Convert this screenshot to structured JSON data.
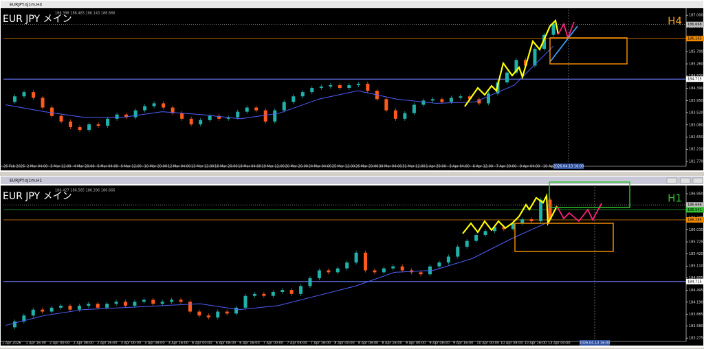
{
  "windows": [
    {
      "title": "EURJPY.oj1m,H4",
      "quote": "186.398 186.483 186.143 186.666",
      "label": "EUR JPY メイン",
      "timeframe": "H4",
      "timeframe_color": "#f0a020",
      "ylim": [
        181.7,
        187.2
      ],
      "yticks": [
        {
          "value": 187,
          "label": "187.000"
        },
        {
          "value": 186.57,
          "label": "186.570"
        },
        {
          "value": 186.13,
          "label": "186.130"
        },
        {
          "value": 185.7,
          "label": "185.700"
        },
        {
          "value": 185.26,
          "label": "185.260"
        },
        {
          "value": 184.83,
          "label": "184.830"
        },
        {
          "value": 184.39,
          "label": "184.390"
        },
        {
          "value": 183.95,
          "label": "183.950"
        },
        {
          "value": 183.52,
          "label": "183.520"
        },
        {
          "value": 183.08,
          "label": "183.080"
        },
        {
          "value": 182.65,
          "label": "182.650"
        },
        {
          "value": 182.21,
          "label": "182.210"
        },
        {
          "value": 181.77,
          "label": "181.770"
        }
      ],
      "price_tags": [
        {
          "value": 186.668,
          "label": "186.668",
          "color": "#c0c0c0"
        },
        {
          "value": 186.165,
          "label": "186.165",
          "color": "#f08a00"
        },
        {
          "value": 184.715,
          "label": "184.715",
          "color": "#ffffff"
        }
      ],
      "time_labels": [
        "26 Feb 2026",
        "2 Mar 04:00",
        "3 Mar 12:00",
        "4 Mar 20:00",
        "6 Mar 04:00",
        "9 Mar 12:00",
        "10 Mar 20:00",
        "12 Mar 04:00",
        "13 Mar 12:00",
        "16 Mar 20:00",
        "18 Mar 04:00",
        "19 Mar 12:00",
        "20 Mar 20:00",
        "24 Mar 04:00",
        "25 Mar 12:00",
        "26 Mar 20:00",
        "30 Mar 04:00",
        "31 Mar 12:00",
        "1 Apr 20:00",
        "3 Apr 04:00",
        "6 Apr 12:00",
        "7 Apr 20:00",
        "9 Apr 04:00",
        "10 Apr 12:00"
      ],
      "cursor_time": "2026.04.13 16:00",
      "closes": [
        183.9,
        184.1,
        184.25,
        184.05,
        183.7,
        183.4,
        183.2,
        183.0,
        182.9,
        183.1,
        183.05,
        183.3,
        183.45,
        183.35,
        183.6,
        183.75,
        183.85,
        183.7,
        183.5,
        183.3,
        183.1,
        183.25,
        183.4,
        183.3,
        183.35,
        183.55,
        183.7,
        183.6,
        183.2,
        183.6,
        183.9,
        184.1,
        184.25,
        184.4,
        184.45,
        184.5,
        184.4,
        184.5,
        184.55,
        184.3,
        184.0,
        183.6,
        183.3,
        183.5,
        183.8,
        183.95,
        184.0,
        183.9,
        184.05,
        184.1,
        184.0,
        183.85,
        184.2,
        184.6,
        184.95,
        185.4,
        185.2,
        185.8,
        186.3,
        186.7
      ],
      "ma": [
        183.8,
        183.55,
        183.35,
        183.35,
        183.55,
        183.45,
        183.3,
        183.5,
        184.0,
        184.3,
        184.0,
        183.85,
        183.9,
        184.5,
        185.9
      ]
    },
    {
      "title": "EURJPY.oj1m,H1",
      "quote": "186.427 186.585 186.396 186.666",
      "label": "EUR JPY メイン",
      "timeframe": "H1",
      "timeframe_color": "#30c030",
      "ylim": [
        183.26,
        187.125
      ],
      "yticks": [
        {
          "value": 186.95,
          "label": "186.950"
        },
        {
          "value": 186.645,
          "label": "186.645"
        },
        {
          "value": 186.34,
          "label": "186.340"
        },
        {
          "value": 186.035,
          "label": "186.035"
        },
        {
          "value": 185.725,
          "label": "185.725"
        },
        {
          "value": 185.42,
          "label": "185.420"
        },
        {
          "value": 185.11,
          "label": "185.110"
        },
        {
          "value": 184.805,
          "label": "184.805"
        },
        {
          "value": 184.495,
          "label": "184.495"
        },
        {
          "value": 184.19,
          "label": "184.190"
        },
        {
          "value": 183.885,
          "label": "183.885"
        },
        {
          "value": 183.58,
          "label": "183.580"
        },
        {
          "value": 183.275,
          "label": "183.275"
        }
      ],
      "price_tags": [
        {
          "value": 186.666,
          "label": "186.666",
          "color": "#c0c0c0"
        },
        {
          "value": 186.541,
          "label": "186.541",
          "color": "#30c030"
        },
        {
          "value": 186.285,
          "label": "186.285",
          "color": "#f08a00"
        },
        {
          "value": 184.715,
          "label": "184.715",
          "color": "#ffffff"
        }
      ],
      "time_labels": [
        "1 Apr 2026",
        "1 Apr 16:00",
        "2 Apr 00:00",
        "2 Apr 08:00",
        "2 Apr 16:00",
        "3 Apr 00:00",
        "3 Apr 08:00",
        "3 Apr 16:00",
        "6 Apr 00:00",
        "6 Apr 08:00",
        "6 Apr 16:00",
        "7 Apr 00:00",
        "7 Apr 08:00",
        "7 Apr 16:00",
        "8 Apr 00:00",
        "8 Apr 08:00",
        "8 Apr 16:00",
        "9 Apr 00:00",
        "9 Apr 08:00",
        "9 Apr 16:00",
        "10 Apr 00:00",
        "10 Apr 08:00",
        "10 Apr 16:00",
        "13 Apr 00:00"
      ],
      "cursor_time": "2026.04.13 16:00",
      "closes": [
        183.55,
        183.7,
        183.85,
        184.0,
        183.95,
        184.05,
        184.1,
        184.0,
        184.1,
        184.15,
        184.05,
        184.15,
        184.2,
        184.1,
        184.2,
        184.25,
        184.15,
        184.2,
        184.25,
        184.2,
        183.95,
        183.85,
        183.8,
        183.95,
        183.9,
        184.05,
        184.35,
        184.4,
        184.35,
        184.45,
        184.5,
        184.4,
        184.6,
        184.8,
        185.0,
        184.95,
        185.05,
        185.2,
        185.45,
        185.0,
        184.95,
        185.05,
        185.1,
        185.0,
        184.95,
        184.9,
        185.1,
        185.2,
        185.35,
        185.6,
        185.75,
        185.9,
        186.0,
        186.1,
        186.05,
        186.2,
        186.3,
        186.25,
        186.8,
        186.3
      ],
      "ma": [
        183.6,
        183.85,
        184.0,
        184.05,
        184.1,
        184.15,
        184.0,
        184.1,
        184.35,
        184.6,
        184.95,
        185.0,
        185.3,
        185.8,
        186.25
      ]
    }
  ]
}
